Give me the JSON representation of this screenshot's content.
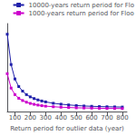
{
  "chart_data": {
    "type": "line",
    "xlabel": "Return period for outlier data (year)",
    "x": [
      50,
      75,
      100,
      125,
      150,
      175,
      200,
      225,
      250,
      275,
      300,
      350,
      400,
      450,
      500,
      550,
      600,
      650,
      700,
      750,
      800
    ],
    "series": [
      {
        "name": "10000-years return period for Flo",
        "color": "#2020AA",
        "marker": "square",
        "values": [
          5.8,
          3.8,
          2.85,
          2.35,
          2.05,
          1.82,
          1.67,
          1.56,
          1.47,
          1.4,
          1.34,
          1.25,
          1.19,
          1.14,
          1.1,
          1.07,
          1.05,
          1.03,
          1.02,
          1.01,
          1.0
        ]
      },
      {
        "name": "1000-years return period for Floo",
        "color": "#CC00CC",
        "marker": "square",
        "values": [
          3.2,
          2.25,
          1.82,
          1.58,
          1.43,
          1.32,
          1.24,
          1.18,
          1.13,
          1.09,
          1.06,
          1.02,
          0.99,
          0.97,
          0.95,
          0.94,
          0.93,
          0.92,
          0.91,
          0.91,
          0.9
        ]
      }
    ],
    "xlim": [
      50,
      830
    ],
    "xticks": [
      100,
      200,
      300,
      400,
      500,
      600,
      700,
      800
    ],
    "ylim": [
      0.7,
      6.5
    ],
    "tick_labels": "x",
    "grid": false,
    "legend": "upper right"
  }
}
